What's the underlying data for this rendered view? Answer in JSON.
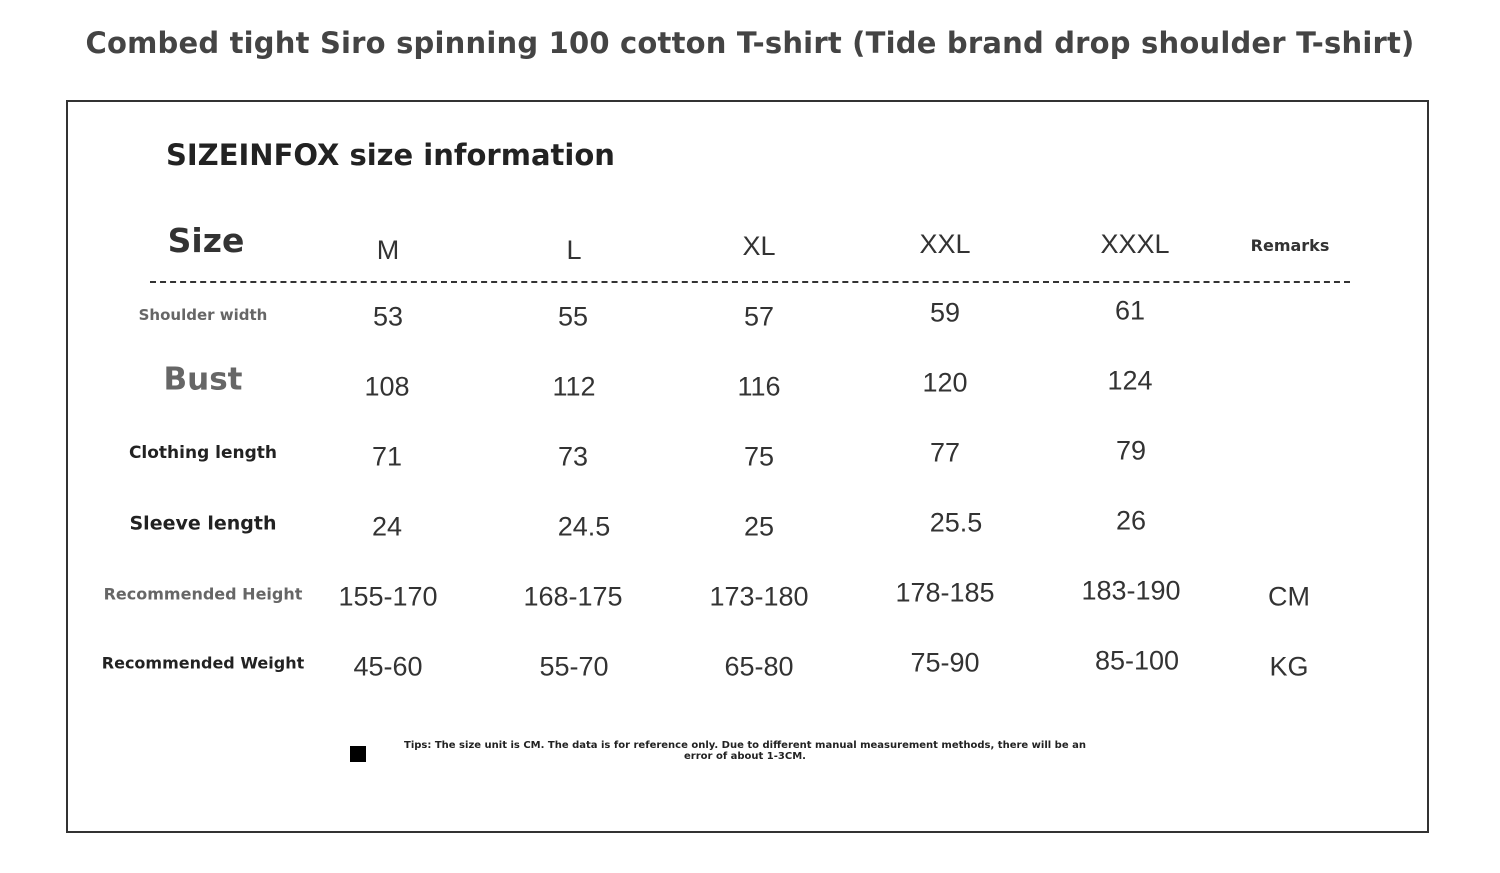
{
  "page": {
    "title": "Combed tight Siro spinning 100 cotton T-shirt (Tide brand drop shoulder T-shirt)"
  },
  "section_title": "SIZEINFOX size information",
  "header": {
    "size_label": "Size",
    "sizes": [
      "M",
      "L",
      "XL",
      "XXL",
      "XXXL"
    ],
    "remarks_label": "Remarks"
  },
  "rows": [
    {
      "label": "Shoulder width",
      "values": [
        "53",
        "55",
        "57",
        "59",
        "61"
      ],
      "remark": ""
    },
    {
      "label": "Bust",
      "values": [
        "108",
        "112",
        "116",
        "120",
        "124"
      ],
      "remark": ""
    },
    {
      "label": "Clothing length",
      "values": [
        "71",
        "73",
        "75",
        "77",
        "79"
      ],
      "remark": ""
    },
    {
      "label": "Sleeve length",
      "values": [
        "24",
        "24.5",
        "25",
        "25.5",
        "26"
      ],
      "remark": ""
    },
    {
      "label": "Recommended Height",
      "values": [
        "155-170",
        "168-175",
        "173-180",
        "178-185",
        "183-190"
      ],
      "remark": "CM"
    },
    {
      "label": "Recommended Weight",
      "values": [
        "45-60",
        "55-70",
        "65-80",
        "75-90",
        "85-100"
      ],
      "remark": "KG"
    }
  ],
  "tip": {
    "text": "Tips: The size unit is CM. The data is for reference only. Due to different manual measurement methods, there will be an error of about 1-3CM."
  },
  "colors": {
    "title_text": "#444444",
    "body_text": "#333333",
    "muted_label": "#666666",
    "frame_border": "#333333"
  }
}
